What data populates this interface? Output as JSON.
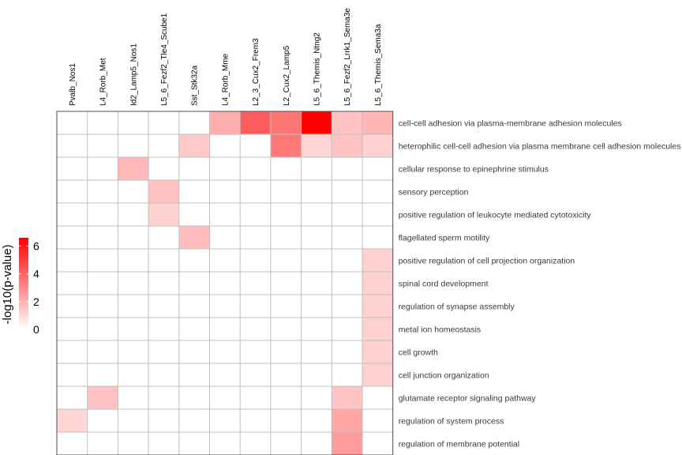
{
  "chart_data": {
    "type": "heatmap",
    "columns": [
      "Pvalb_Nos1",
      "L4_Rorb_Met",
      "Id2_Lamp5_Nos1",
      "L5_6_Fezf2_Tle4_Scube1",
      "Sst_Stk32a",
      "L4_Rorb_Mme",
      "L2_3_Cux2_Frem3",
      "L2_Cux2_Lamp5",
      "L5_6_Themis_Ntng2",
      "L5_6_Fezf2_Lrrk1_Sema3e",
      "L5_6_Themis_Sema3a"
    ],
    "rows": [
      "cell-cell adhesion via plasma-membrane adhesion molecules",
      "heterophilic cell-cell adhesion via plasma membrane cell adhesion molecules",
      "cellular response to epinephrine stimulus",
      "sensory perception",
      "positive regulation of leukocyte mediated cytotoxicity",
      "flagellated sperm motility",
      "positive regulation of cell projection organization",
      "spinal cord development",
      "regulation of synapse assembly",
      "metal ion homeostasis",
      "cell growth",
      "cell junction organization",
      "glutamate receptor signaling pathway",
      "regulation of system process",
      "regulation of membrane potential"
    ],
    "values": [
      [
        0,
        0,
        0,
        0,
        0,
        2.1,
        4.2,
        3.6,
        6.6,
        1.6,
        1.9
      ],
      [
        0,
        0,
        0,
        0,
        1.4,
        0,
        0,
        3.5,
        1.1,
        1.6,
        1.2
      ],
      [
        0,
        0,
        1.8,
        0,
        0,
        0,
        0,
        0,
        0,
        0,
        0
      ],
      [
        0,
        0,
        0,
        1.6,
        0,
        0,
        0,
        0,
        0,
        0,
        0
      ],
      [
        0,
        0,
        0,
        1.2,
        0,
        0,
        0,
        0,
        0,
        0,
        0
      ],
      [
        0,
        0,
        0,
        0,
        1.7,
        0,
        0,
        0,
        0,
        0,
        0
      ],
      [
        0,
        0,
        0,
        0,
        0,
        0,
        0,
        0,
        0,
        0,
        1.2
      ],
      [
        0,
        0,
        0,
        0,
        0,
        0,
        0,
        0,
        0,
        0,
        1.2
      ],
      [
        0,
        0,
        0,
        0,
        0,
        0,
        0,
        0,
        0,
        0,
        1.2
      ],
      [
        0,
        0,
        0,
        0,
        0,
        0,
        0,
        0,
        0,
        0,
        1.2
      ],
      [
        0,
        0,
        0,
        0,
        0,
        0,
        0,
        0,
        0,
        0,
        1.2
      ],
      [
        0,
        0,
        0,
        0,
        0,
        0,
        0,
        0,
        0,
        0,
        1.2
      ],
      [
        0,
        1.6,
        0,
        0,
        0,
        0,
        0,
        0,
        0,
        1.5,
        0
      ],
      [
        1.1,
        0,
        0,
        0,
        0,
        0,
        0,
        0,
        0,
        2.3,
        0
      ],
      [
        0,
        0,
        0,
        0,
        0,
        0,
        0,
        0,
        0,
        2.6,
        0
      ]
    ],
    "color_scale": {
      "title": "-log10(p-value)",
      "min": 0,
      "max": 6.6,
      "ticks": [
        "0",
        "2",
        "4",
        "6"
      ],
      "low_color": "#ffffff",
      "high_color": "#ff0000"
    },
    "grid_color": "#bfbfbf",
    "border_color": "#4d4d4d",
    "legend_position": "left"
  }
}
